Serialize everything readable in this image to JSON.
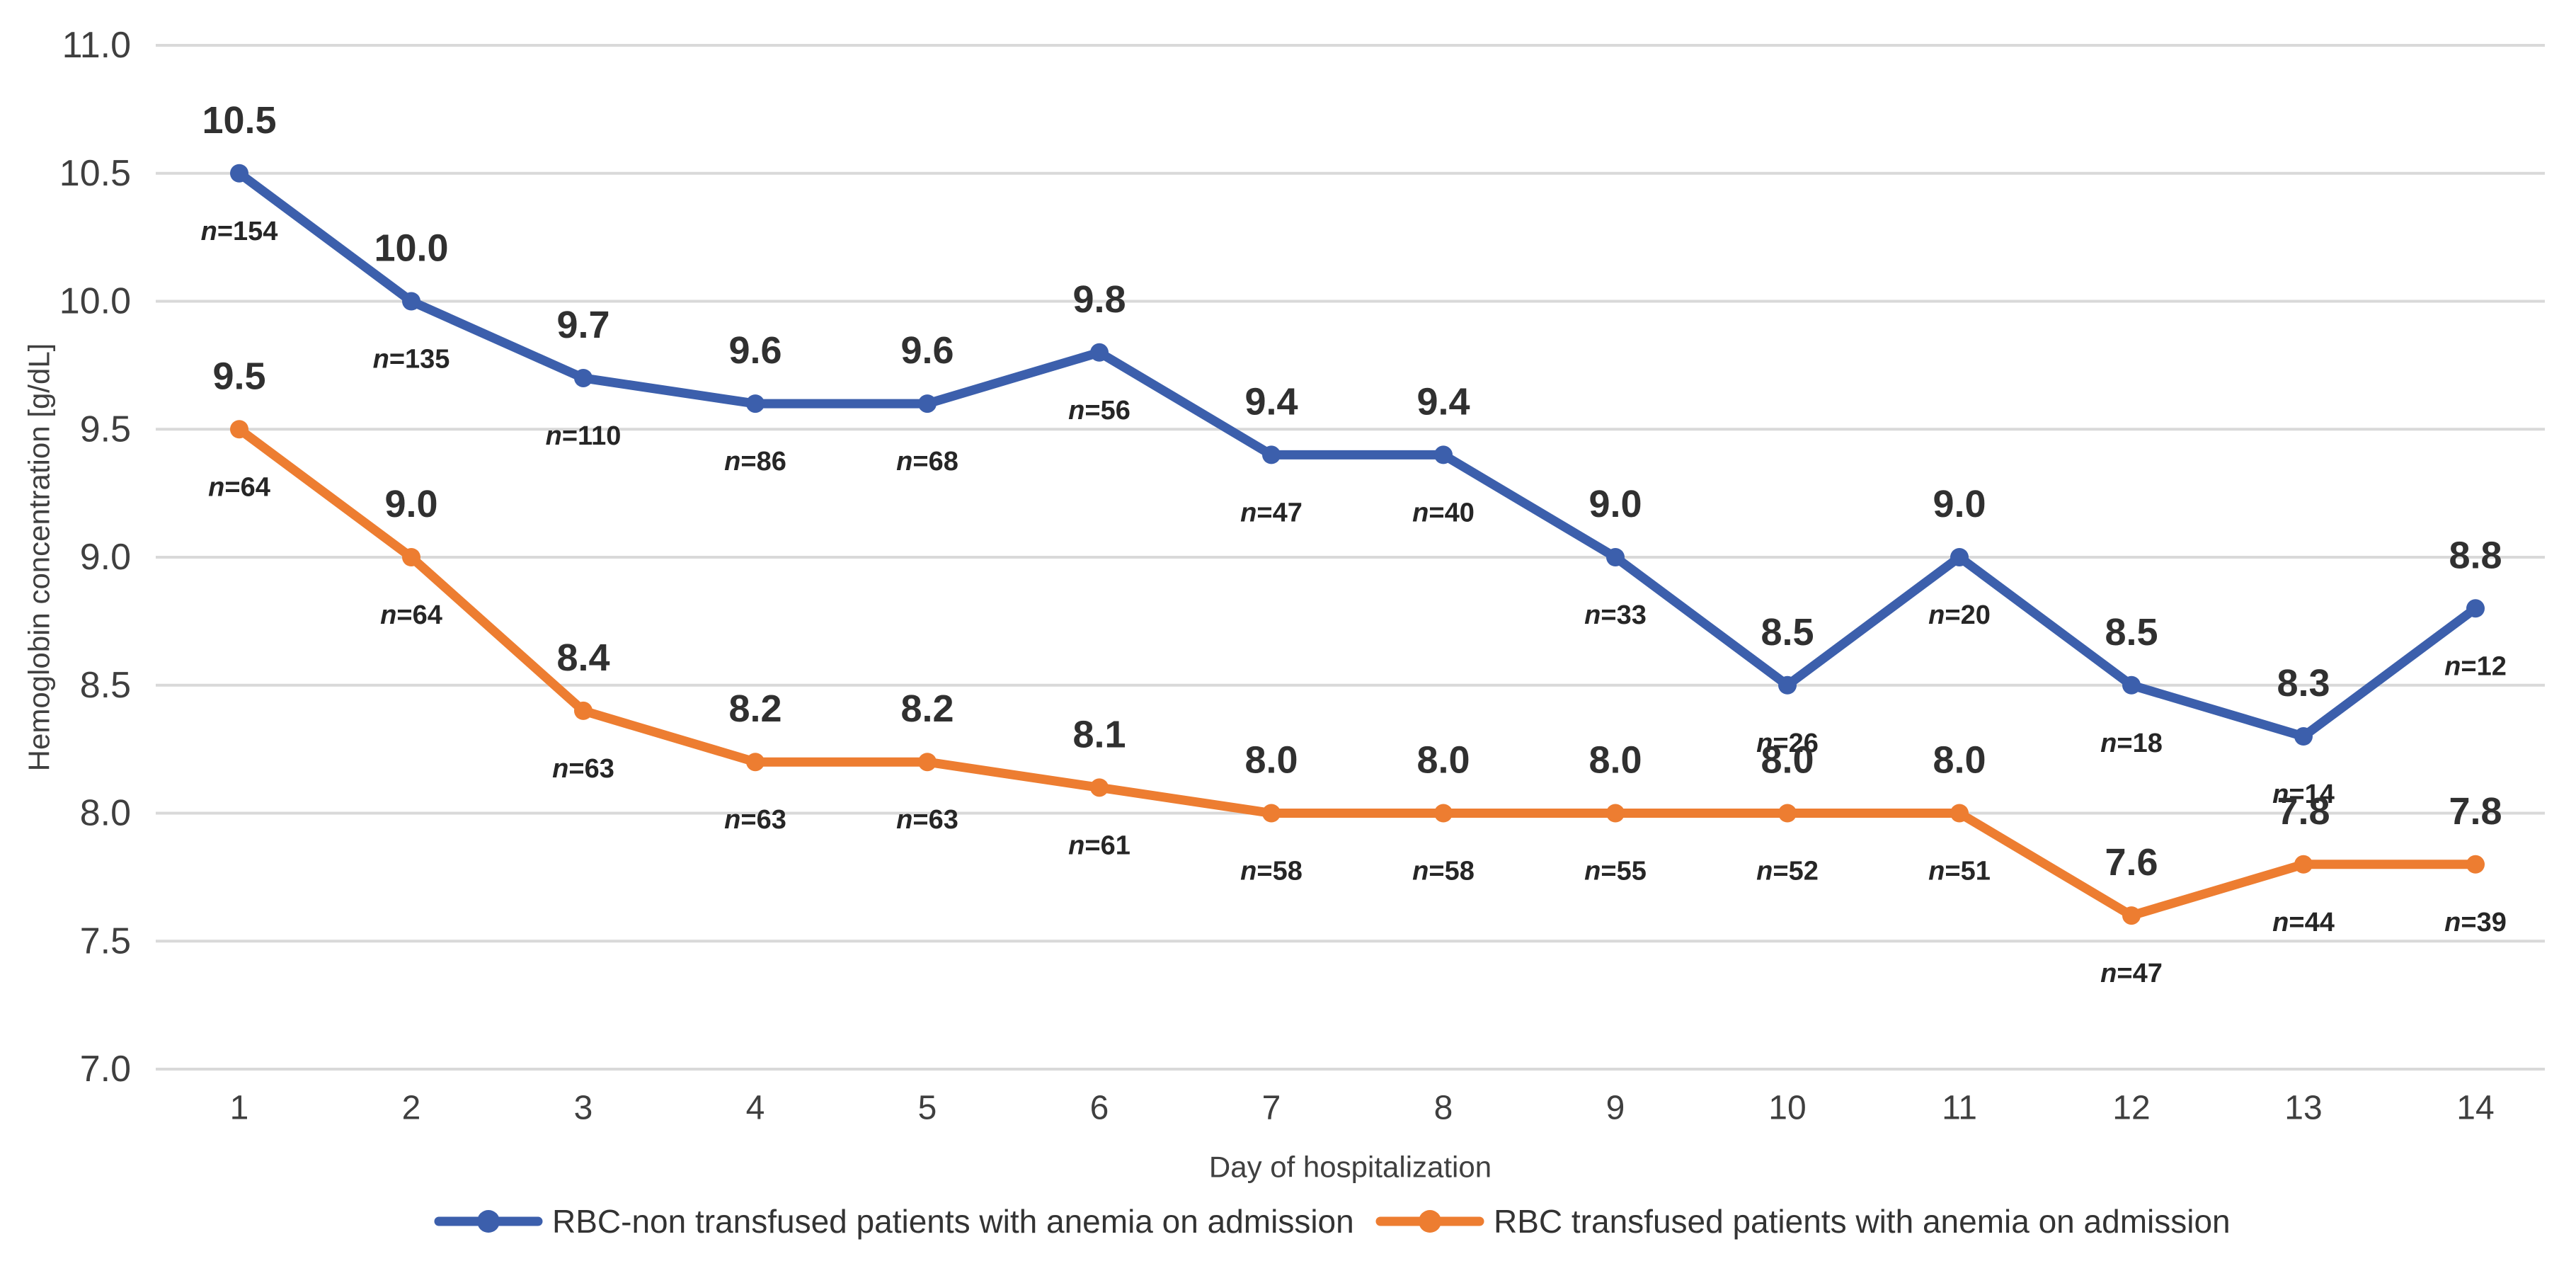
{
  "chart_data": {
    "type": "line",
    "title": "",
    "xlabel": "Day of hospitalization",
    "ylabel": "Hemoglobin concentration [g/dL]",
    "x": [
      1,
      2,
      3,
      4,
      5,
      6,
      7,
      8,
      9,
      10,
      11,
      12,
      13,
      14
    ],
    "x_tick_labels": [
      "1",
      "2",
      "3",
      "4",
      "5",
      "6",
      "7",
      "8",
      "9",
      "10",
      "11",
      "12",
      "13",
      "14"
    ],
    "y_ticks": [
      11.0,
      10.5,
      10.0,
      9.5,
      9.0,
      8.5,
      8.0,
      7.5,
      7.0
    ],
    "y_tick_labels": [
      "11.0",
      "10.5",
      "10.0",
      "9.5",
      "9.0",
      "8.5",
      "8.0",
      "7.5",
      "7.0"
    ],
    "ylim": [
      7.0,
      11.0
    ],
    "grid": "horizontal",
    "legend_position": "bottom",
    "n_prefix": "n=",
    "series": [
      {
        "name": "RBC-non transfused patients with anemia on admission",
        "color": "#3C5FAC",
        "values": [
          10.5,
          10.0,
          9.7,
          9.6,
          9.6,
          9.8,
          9.4,
          9.4,
          9.0,
          8.5,
          9.0,
          8.5,
          8.3,
          8.8
        ],
        "value_labels": [
          "10.5",
          "10.0",
          "9.7",
          "9.6",
          "9.6",
          "9.8",
          "9.4",
          "9.4",
          "9.0",
          "8.5",
          "9.0",
          "8.5",
          "8.3",
          "8.8"
        ],
        "n": [
          154,
          135,
          110,
          86,
          68,
          56,
          47,
          40,
          33,
          26,
          20,
          18,
          14,
          12
        ]
      },
      {
        "name": "RBC transfused patients with anemia on admission",
        "color": "#ED7D31",
        "values": [
          9.5,
          9.0,
          8.4,
          8.2,
          8.2,
          8.1,
          8.0,
          8.0,
          8.0,
          8.0,
          8.0,
          7.6,
          7.8,
          7.8
        ],
        "value_labels": [
          "9.5",
          "9.0",
          "8.4",
          "8.2",
          "8.2",
          "8.1",
          "8.0",
          "8.0",
          "8.0",
          "8.0",
          "8.0",
          "7.6",
          "7.8",
          "7.8"
        ],
        "n": [
          64,
          64,
          63,
          63,
          63,
          61,
          58,
          58,
          55,
          52,
          51,
          47,
          44,
          39
        ]
      }
    ]
  },
  "colors": {
    "background": "#FFFFFF",
    "gridline": "#D9D9D9",
    "tick_text": "#3F3F3F",
    "value_label_text": "#303030",
    "n_label_text": "#262626",
    "axis_title_text": "#404040",
    "legend_text": "#333333"
  }
}
